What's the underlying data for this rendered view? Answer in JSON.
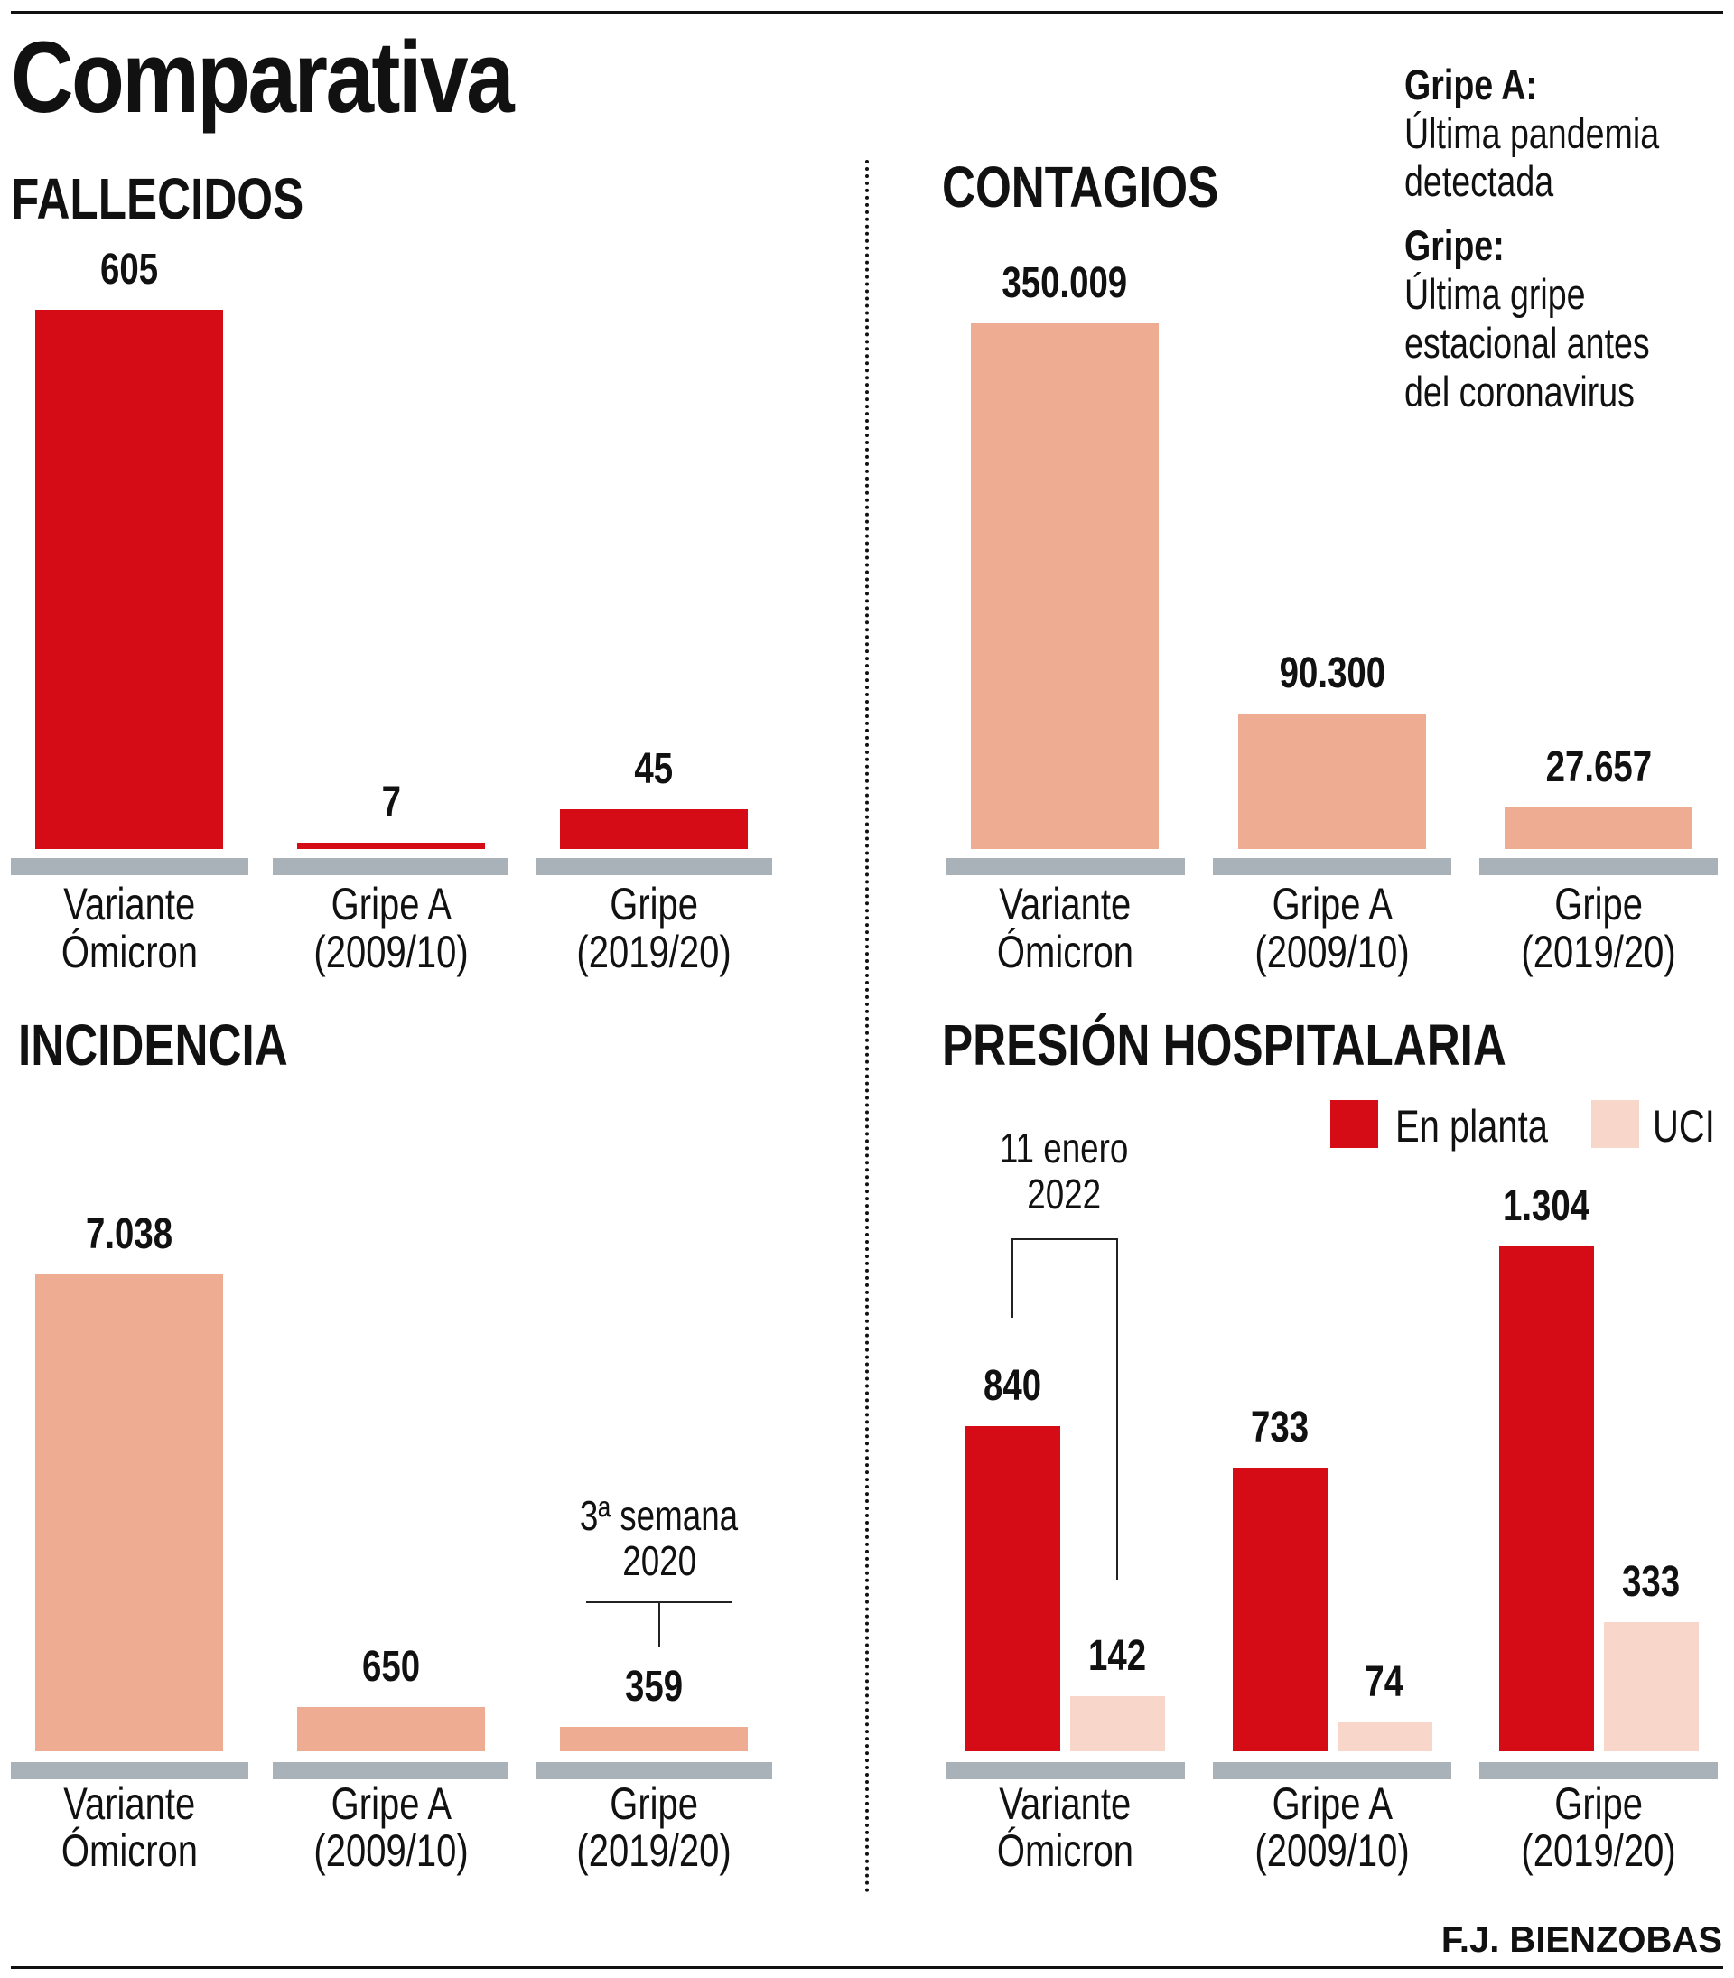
{
  "header": {
    "title": "Comparativa",
    "notes": [
      {
        "term": "Gripe A:",
        "lines": [
          "Última pandemia",
          "detectada"
        ]
      },
      {
        "term": "Gripe:",
        "lines": [
          "Última gripe",
          "estacional antes",
          "del coronavirus"
        ]
      }
    ]
  },
  "colors": {
    "red": "#d50b15",
    "salmon": "#eeac93",
    "pale": "#f8d6c9",
    "base": "#a8b2b8"
  },
  "credit": "F.J. BIENZOBAS",
  "chart_data": [
    {
      "type": "bar",
      "title": "FALLECIDOS",
      "categories": [
        [
          "Variante",
          "Ómicron"
        ],
        [
          "Gripe A",
          "(2009/10)"
        ],
        [
          "Gripe",
          "(2019/20)"
        ]
      ],
      "values": [
        605,
        7,
        45
      ],
      "labels": [
        "605",
        "7",
        "45"
      ],
      "color": "#d50b15"
    },
    {
      "type": "bar",
      "title": "CONTAGIOS",
      "categories": [
        [
          "Variante",
          "Ómicron"
        ],
        [
          "Gripe A",
          "(2009/10)"
        ],
        [
          "Gripe",
          "(2019/20)"
        ]
      ],
      "values": [
        350009,
        90300,
        27657
      ],
      "labels": [
        "350.009",
        "90.300",
        "27.657"
      ],
      "color": "#eeac93"
    },
    {
      "type": "bar",
      "title": "INCIDENCIA",
      "categories": [
        [
          "Variante",
          "Ómicron"
        ],
        [
          "Gripe A",
          "(2009/10)"
        ],
        [
          "Gripe",
          "(2019/20)"
        ]
      ],
      "values": [
        7038,
        650,
        359
      ],
      "labels": [
        "7.038",
        "650",
        "359"
      ],
      "color": "#eeac93",
      "annotation": {
        "category": 2,
        "lines": [
          "3ª semana",
          "2020"
        ]
      }
    },
    {
      "type": "bar",
      "title": "PRESIÓN HOSPITALARIA",
      "categories": [
        [
          "Variante",
          "Ómicron"
        ],
        [
          "Gripe A",
          "(2009/10)"
        ],
        [
          "Gripe",
          "(2019/20)"
        ]
      ],
      "legend": [
        "En planta",
        "UCI"
      ],
      "legend_position": "top-right",
      "series": [
        {
          "name": "En planta",
          "values": [
            840,
            733,
            1304
          ],
          "labels": [
            "840",
            "733",
            "1.304"
          ],
          "color": "#d50b15"
        },
        {
          "name": "UCI",
          "values": [
            142,
            74,
            333
          ],
          "labels": [
            "142",
            "74",
            "333"
          ],
          "color": "#f8d6c9"
        }
      ],
      "annotation": {
        "category": 0,
        "lines": [
          "11 enero",
          "2022"
        ]
      }
    }
  ]
}
